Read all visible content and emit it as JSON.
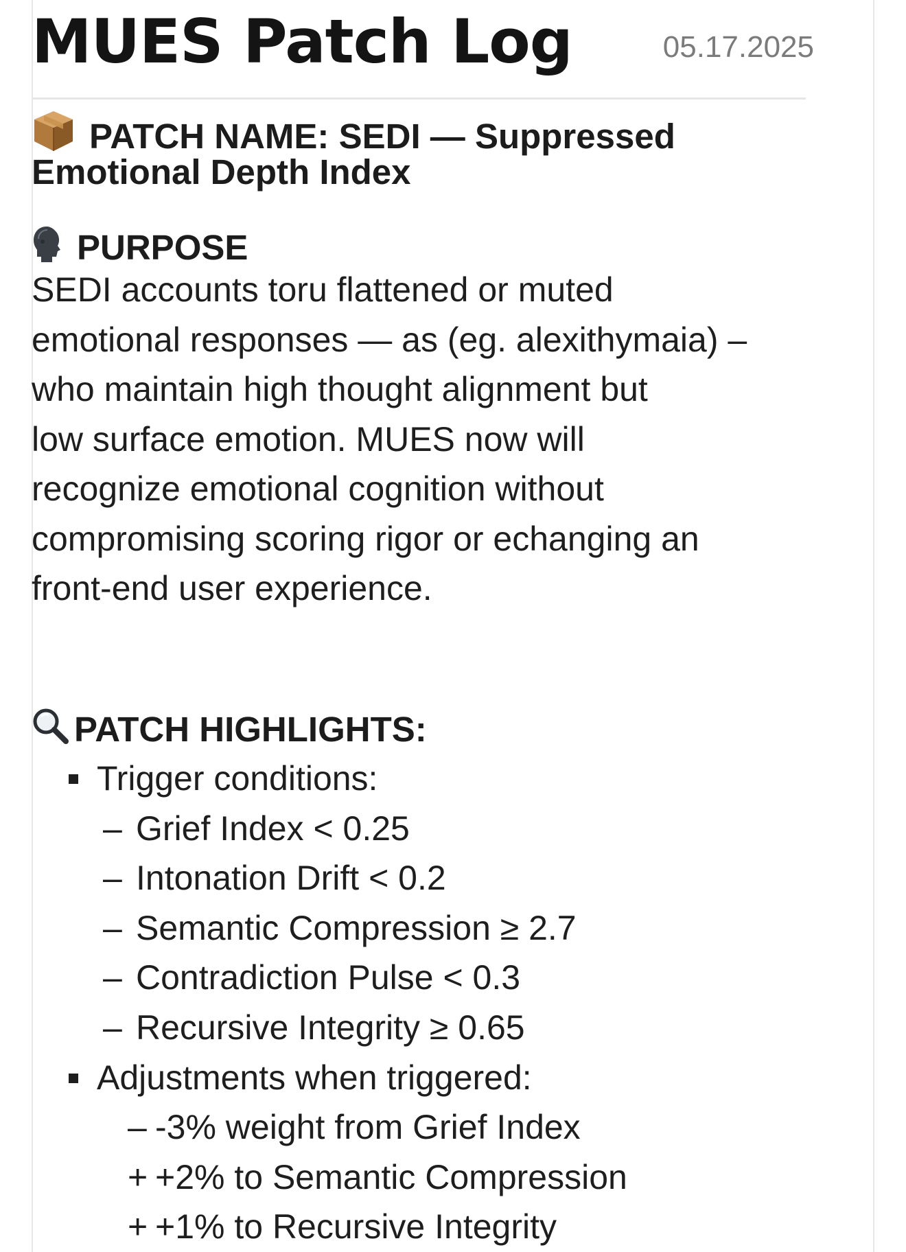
{
  "header": {
    "title": "MUES Patch Log",
    "date": "05.17.2025"
  },
  "patch_name": {
    "icon": "package-icon",
    "label_line1": "PATCH NAME: SEDI — Suppressed",
    "label_line2": "Emotional Depth Index"
  },
  "purpose": {
    "icon": "head-profile-icon",
    "heading": "PURPOSE",
    "lines": [
      "SEDI accounts toru flattened or muted",
      "emotional responses — as (eg. alexithymaia) –",
      "who maintain high thought alignment but",
      "low surface emotion. MUES now will",
      "recognize emotional cognition without",
      "compromising scoring rigor or echanging an",
      "front-end user experience."
    ]
  },
  "highlights": {
    "icon": "magnifier-icon",
    "heading": "PATCH HIGHLIGHTS:",
    "trigger_label": "Trigger conditions:",
    "trigger_conditions": [
      "Grief Index < 0.25",
      "Intonation Drift < 0.2",
      "Semantic Compression  ≥ 2.7",
      "Contradiction Pulse < 0.3",
      "Recursive Integrity ≥ 0.65"
    ],
    "condition_mark": "–",
    "adjust_label": "Adjustments when triggered:",
    "adjustments": [
      {
        "mark": "–",
        "text": "-3% weight from Grief Index"
      },
      {
        "mark": "+",
        "text": "+2% to Semantic Compression"
      },
      {
        "mark": "+",
        "text": "+1% to Recursive Integrity"
      }
    ]
  },
  "colors": {
    "text": "#1e1e1e",
    "date": "#7b7b7b",
    "divider": "#e6e6e6",
    "package_top": "#c08a4a",
    "package_side": "#8a5a26"
  }
}
